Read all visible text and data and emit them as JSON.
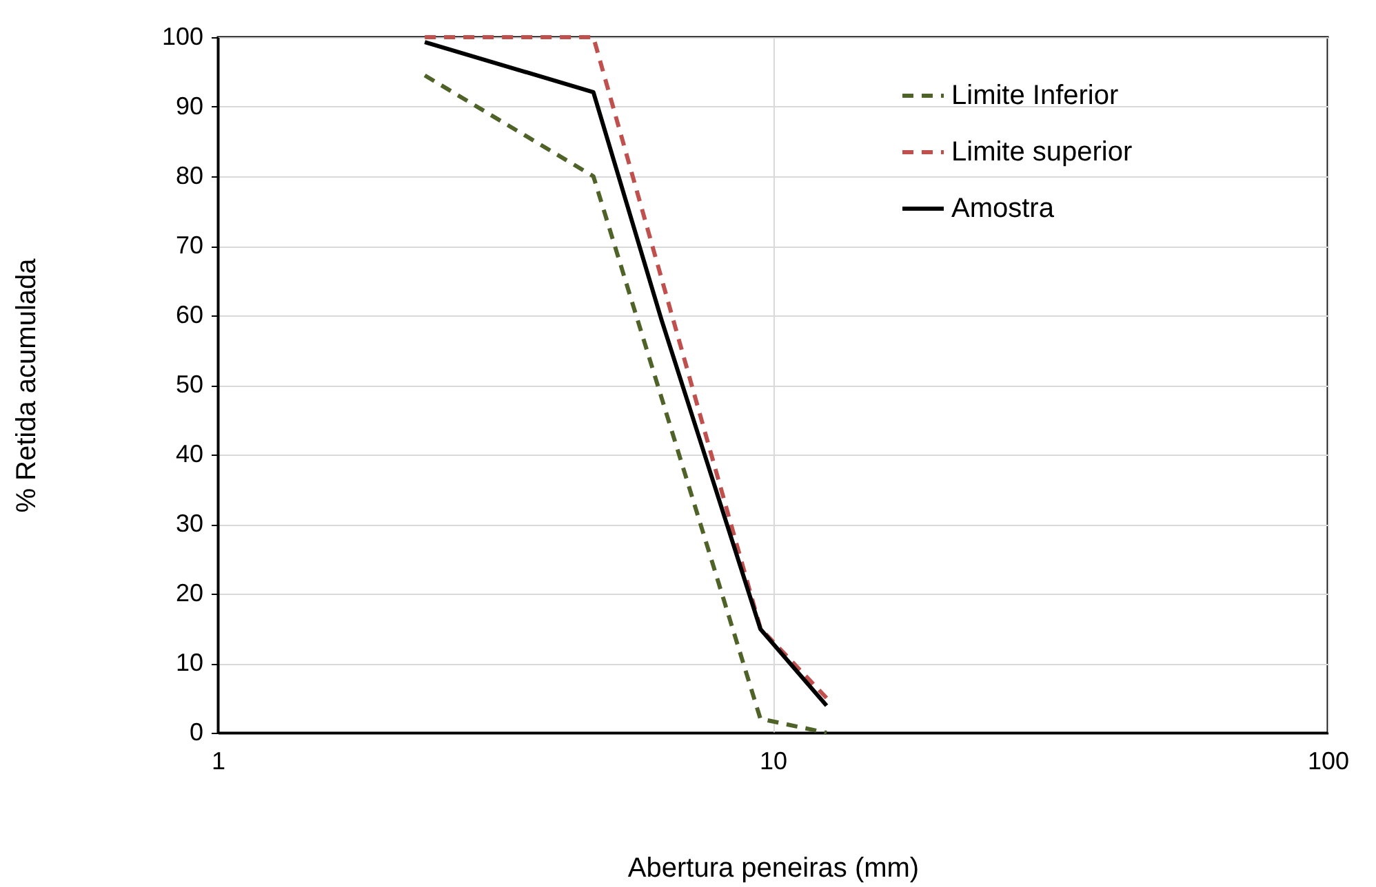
{
  "chart_data": {
    "type": "line",
    "xlabel": "Abertura peneiras (mm)",
    "ylabel": "% Retida acumulada",
    "log": "x",
    "xlim": [
      1,
      100
    ],
    "xticks": [
      1,
      10,
      100
    ],
    "ylim": [
      0,
      100
    ],
    "yticks": [
      0,
      10,
      20,
      30,
      40,
      50,
      60,
      70,
      80,
      90,
      100
    ],
    "grid": true,
    "legend": "top right",
    "marker": "none",
    "series": [
      {
        "name": "Limite Inferior",
        "color": "#4f6228",
        "line_style": "dashed",
        "x": [
          2.36,
          4.75,
          9.5,
          12.5
        ],
        "values": [
          94.5,
          80,
          2,
          0
        ]
      },
      {
        "name": "Limite superior",
        "color": "#c0504d",
        "line_style": "dashed",
        "x": [
          2.36,
          4.75,
          9.5,
          12.5
        ],
        "values": [
          100,
          100,
          15,
          5
        ]
      },
      {
        "name": "Amostra",
        "color": "#000000",
        "line_style": "solid",
        "x": [
          2.36,
          4.75,
          6.3,
          9.5,
          12.5
        ],
        "values": [
          99.3,
          92.1,
          59.4,
          14.9,
          3.9
        ]
      }
    ]
  }
}
